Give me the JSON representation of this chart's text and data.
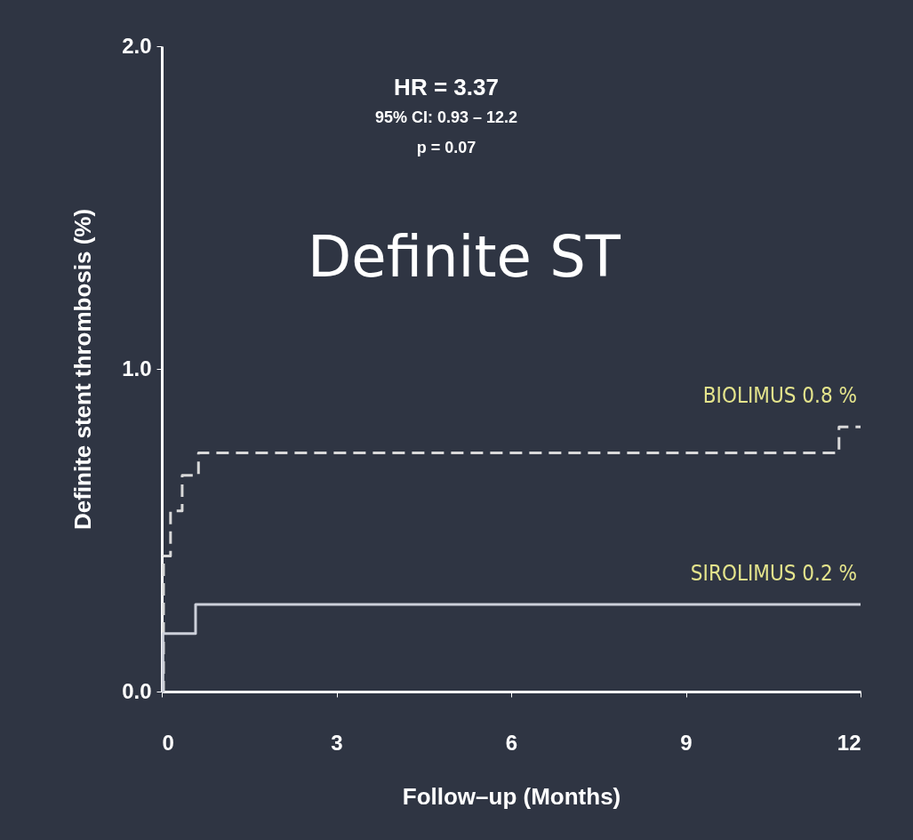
{
  "chart_data": {
    "type": "step",
    "title": "Definite ST",
    "xlabel": "Follow–up (Months)",
    "ylabel": "Definite stent thrombosis (%)",
    "annotations": [
      "HR = 3.37",
      "95% CI: 0.93 – 12.2",
      "p = 0.07"
    ],
    "xlim": [
      0,
      12
    ],
    "xticks": [
      0,
      3,
      6,
      9,
      12
    ],
    "ylim": [
      0,
      2
    ],
    "yticks": [
      {
        "value": 0,
        "label": "0.0"
      },
      {
        "value": 1,
        "label": "1.0"
      },
      {
        "value": 2,
        "label": "2.0"
      }
    ],
    "grid": false,
    "marker": "none",
    "series": [
      {
        "name": "BIOLIMUS  0.8 %",
        "color": "#d9d9d9",
        "line_style": "dashed",
        "x": [
          0,
          0.03,
          0.15,
          0.35,
          0.63,
          11.63,
          12
        ],
        "values": [
          0,
          0.42,
          0.56,
          0.67,
          0.74,
          0.82,
          0.82
        ]
      },
      {
        "name": "SIROLIMUS  0.2 %",
        "color": "#cdd0da",
        "line_style": "solid",
        "x": [
          0,
          0.02,
          0.58,
          12
        ],
        "values": [
          0,
          0.18,
          0.27,
          0.27
        ]
      }
    ]
  }
}
